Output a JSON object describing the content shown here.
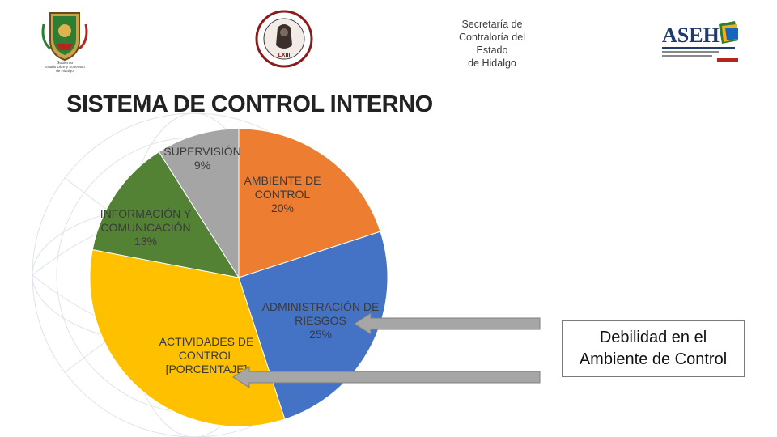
{
  "header": {
    "left_logo_caption": [
      "Gobierno",
      "Estado Libre y Soberano",
      "de Hidalgo"
    ],
    "seal_caption": "LXIII",
    "contraloria_lines": [
      "Secretaría de",
      "Contraloría del Estado",
      "de Hidalgo"
    ],
    "asei_logo_text": "ASEH",
    "colors": {
      "orange": "#ED7D31",
      "blue": "#4472C4",
      "yellow": "#FFC000",
      "green": "#548235",
      "gray": "#A5A5A5"
    }
  },
  "title": "SISTEMA DE CONTROL INTERNO",
  "callout": {
    "line1": "Debilidad en el",
    "line2": "Ambiente de Control"
  },
  "chart_data": {
    "type": "pie",
    "title": "",
    "start_angle_deg": 0,
    "direction": "clockwise",
    "slices": [
      {
        "label_lines": [
          "AMBIENTE DE",
          "CONTROL",
          "20%"
        ],
        "value": 20,
        "color": "#ED7D31"
      },
      {
        "label_lines": [
          "ADMINISTRACIÓN DE",
          "RIESGOS",
          "25%"
        ],
        "value": 25,
        "color": "#4472C4"
      },
      {
        "label_lines": [
          "ACTIVIDADES DE",
          "CONTROL",
          "[PORCENTAJE]"
        ],
        "value": 33,
        "color": "#FFC000"
      },
      {
        "label_lines": [
          "INFORMACIÓN Y",
          "COMUNICACIÓN",
          "13%"
        ],
        "value": 13,
        "color": "#548235"
      },
      {
        "label_lines": [
          "SUPERVISIÓN",
          "9%"
        ],
        "value": 9,
        "color": "#A5A5A5"
      }
    ]
  }
}
